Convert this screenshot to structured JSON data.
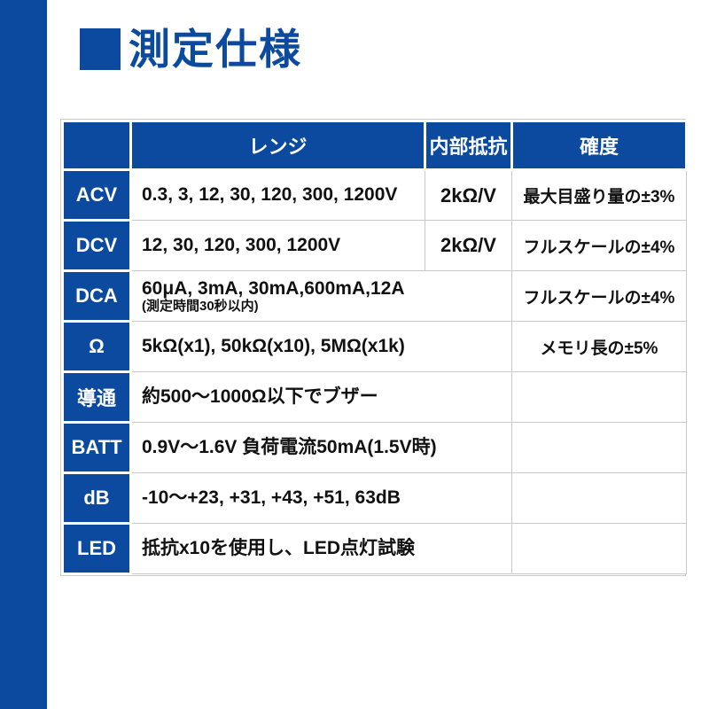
{
  "page": {
    "accent_blue": "#0b4a9f",
    "border_gray": "#c9c9cc",
    "background": "#ffffff",
    "text_color": "#111111"
  },
  "title": {
    "text": "測定仕様"
  },
  "table": {
    "headers": {
      "corner": "",
      "range": "レンジ",
      "internal_resistance": "内部抵抗",
      "accuracy": "確度"
    },
    "rows": [
      {
        "label": "ACV",
        "range": "0.3, 3, 12, 30, 120, 300, 1200V",
        "range_note": "",
        "internal_resistance": "2kΩ/V",
        "accuracy": "最大目盛り量の±3%",
        "range_spans_resistance_column": false
      },
      {
        "label": "DCV",
        "range": "12, 30, 120, 300, 1200V",
        "range_note": "",
        "internal_resistance": "2kΩ/V",
        "accuracy": "フルスケールの±4%",
        "range_spans_resistance_column": false
      },
      {
        "label": "DCA",
        "range": "60μA, 3mA, 30mA,600mA,12A",
        "range_note": "(測定時間30秒以内)",
        "internal_resistance": "",
        "accuracy": "フルスケールの±4%",
        "range_spans_resistance_column": true
      },
      {
        "label": "Ω",
        "range": "5kΩ(x1), 50kΩ(x10), 5MΩ(x1k)",
        "range_note": "",
        "internal_resistance": "",
        "accuracy": "メモリ長の±5%",
        "range_spans_resistance_column": true
      },
      {
        "label": "導通",
        "range": "約500〜1000Ω以下でブザー",
        "range_note": "",
        "internal_resistance": "",
        "accuracy": "",
        "range_spans_resistance_column": true
      },
      {
        "label": "BATT",
        "range": "0.9V〜1.6V 負荷電流50mA(1.5V時)",
        "range_note": "",
        "internal_resistance": "",
        "accuracy": "",
        "range_spans_resistance_column": true
      },
      {
        "label": "dB",
        "range": "-10〜+23, +31, +43, +51, 63dB",
        "range_note": "",
        "internal_resistance": "",
        "accuracy": "",
        "range_spans_resistance_column": true
      },
      {
        "label": "LED",
        "range": "抵抗x10を使用し、LED点灯試験",
        "range_note": "",
        "internal_resistance": "",
        "accuracy": "",
        "range_spans_resistance_column": true
      }
    ]
  }
}
